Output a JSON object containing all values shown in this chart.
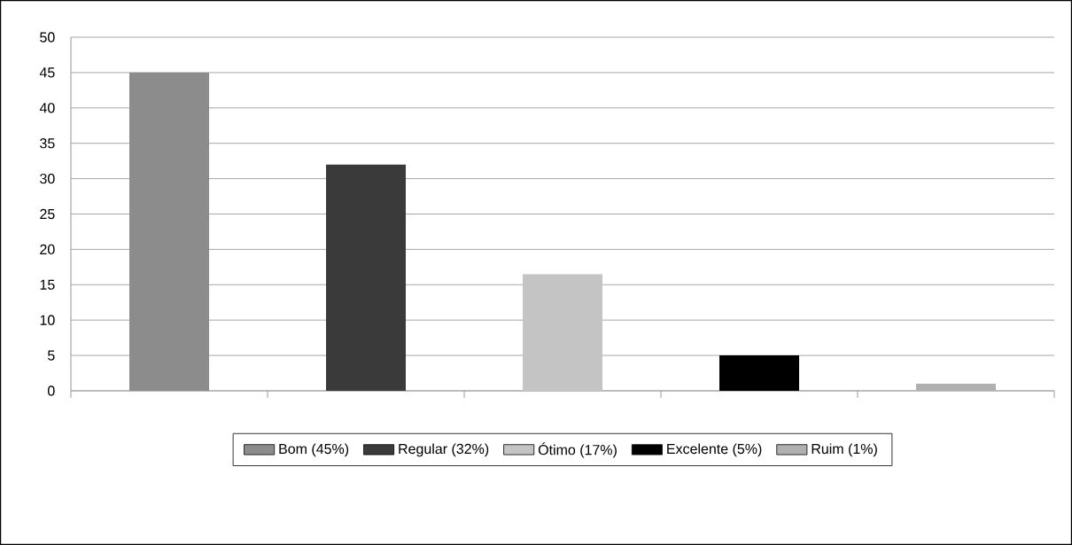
{
  "chart_data": {
    "type": "bar",
    "categories": [
      null,
      null,
      null,
      null,
      null
    ],
    "series": [
      {
        "name": "Bom (45%)",
        "color": "#8c8c8c",
        "values": [
          45,
          null,
          null,
          null,
          null
        ]
      },
      {
        "name": "Regular (32%)",
        "color": "#3a3a3a",
        "values": [
          null,
          32,
          null,
          null,
          null
        ]
      },
      {
        "name": "Ótimo (17%)",
        "color": "#c4c4c4",
        "values": [
          null,
          null,
          16.5,
          null,
          null
        ]
      },
      {
        "name": "Excelente (5%)",
        "color": "#000000",
        "values": [
          null,
          null,
          null,
          5,
          null
        ]
      },
      {
        "name": "Ruim (1%)",
        "color": "#b0b0b0",
        "values": [
          null,
          null,
          null,
          null,
          1
        ]
      }
    ],
    "ylim": [
      0,
      50
    ],
    "yticks": [
      0,
      5,
      10,
      15,
      20,
      25,
      30,
      35,
      40,
      45,
      50
    ],
    "grid": "y",
    "legend": "bottom"
  }
}
